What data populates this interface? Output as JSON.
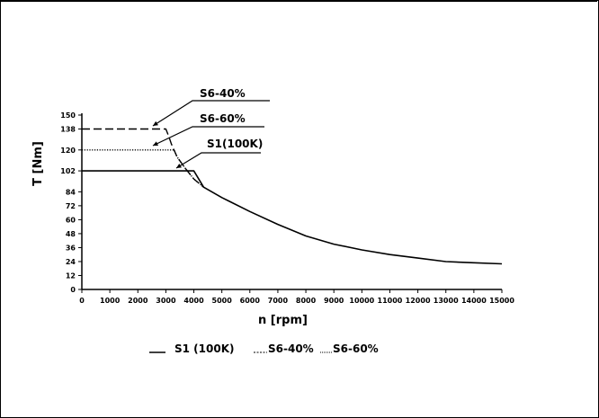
{
  "chart_data": {
    "type": "line",
    "xlabel": "n [rpm]",
    "ylabel": "T [Nm]",
    "xlim": [
      0,
      15000
    ],
    "ylim": [
      0,
      150
    ],
    "x_ticks": [
      0,
      1000,
      2000,
      3000,
      4000,
      5000,
      6000,
      7000,
      8000,
      9000,
      10000,
      11000,
      12000,
      13000,
      14000,
      15000
    ],
    "y_ticks": [
      0,
      12,
      24,
      36,
      48,
      60,
      72,
      84,
      102,
      120,
      138,
      150
    ],
    "y_tick_labels": [
      "0",
      "12",
      "24",
      "36",
      "48",
      "60",
      "72",
      "84",
      "102",
      "120",
      "138",
      "150"
    ],
    "grid": false,
    "series": [
      {
        "name": "S1 (100K)",
        "style": "solid",
        "annotation": "S1(100K)",
        "x": [
          0,
          4000,
          4350,
          5000,
          6000,
          7000,
          8000,
          9000,
          10000,
          11000,
          12000,
          13000,
          14000,
          15000
        ],
        "y": [
          102,
          102,
          88,
          79,
          67,
          56,
          46,
          39,
          34,
          30,
          27,
          24,
          23,
          22
        ]
      },
      {
        "name": "S6-40%",
        "style": "dashed",
        "annotation": "S6-40%",
        "x": [
          0,
          3000,
          3100,
          3200,
          3400,
          3700,
          4000,
          4350
        ],
        "y": [
          138,
          138,
          132,
          125,
          114,
          104,
          95,
          88
        ]
      },
      {
        "name": "S6-60%",
        "style": "dotted",
        "annotation": "S6-60%",
        "x": [
          0,
          3300,
          3400,
          3700,
          4000,
          4350
        ],
        "y": [
          120,
          120,
          114,
          104,
          95,
          88
        ]
      }
    ],
    "legend": {
      "placement": "bottom",
      "items": [
        {
          "label": "S1  (100K)"
        },
        {
          "label": "S6-40%"
        },
        {
          "label": "S6-60%"
        }
      ]
    }
  }
}
